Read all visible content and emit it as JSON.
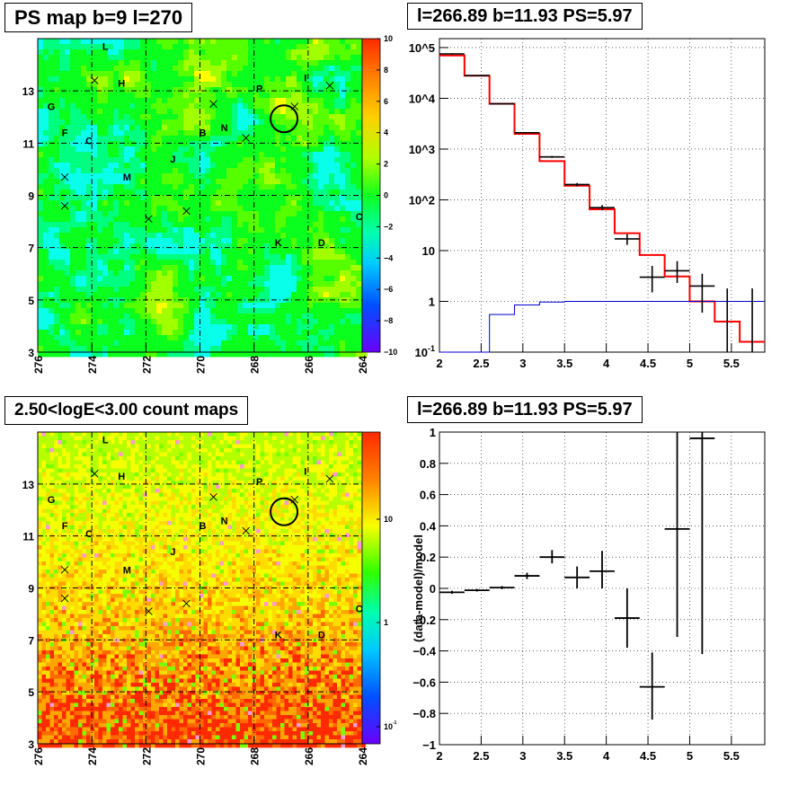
{
  "panels": {
    "tl": {
      "title": "PS map b=9 l=270"
    },
    "tr": {
      "title": "l=266.89 b=11.93 PS=5.97"
    },
    "bl": {
      "title": "2.50<logE<3.00 count maps"
    },
    "br": {
      "title": "l=266.89 b=11.93 PS=5.97"
    }
  },
  "chart_data": [
    {
      "type": "heatmap",
      "title": "PS map b=9 l=270",
      "xlim": [
        276,
        264
      ],
      "ylim": [
        3,
        15
      ],
      "x_ticks": [
        "276",
        "274",
        "272",
        "270",
        "268",
        "266",
        "264"
      ],
      "y_ticks": [
        "3",
        "5",
        "7",
        "9",
        "11",
        "13"
      ],
      "colorbar": {
        "range": [
          -10,
          10
        ],
        "ticks": [
          "10",
          "8",
          "6",
          "4",
          "2",
          "0",
          "−2",
          "−4",
          "−6",
          "−8",
          "−10"
        ]
      },
      "grid": true,
      "sources": [
        {
          "label": "L",
          "l": 273.5,
          "b": 14.7
        },
        {
          "label": "H",
          "l": 272.9,
          "b": 13.3
        },
        {
          "label": "G",
          "l": 275.5,
          "b": 12.4
        },
        {
          "label": "F",
          "l": 275.0,
          "b": 11.4
        },
        {
          "label": "C",
          "l": 274.1,
          "b": 11.1
        },
        {
          "label": "M",
          "l": 272.7,
          "b": 9.7
        },
        {
          "label": "J",
          "l": 271.0,
          "b": 10.4
        },
        {
          "label": "B",
          "l": 269.9,
          "b": 11.4
        },
        {
          "label": "N",
          "l": 269.1,
          "b": 11.6
        },
        {
          "label": "P",
          "l": 267.8,
          "b": 13.1
        },
        {
          "label": "I",
          "l": 266.1,
          "b": 13.5
        },
        {
          "label": "K",
          "l": 267.1,
          "b": 7.2
        },
        {
          "label": "D",
          "l": 265.5,
          "b": 7.2
        },
        {
          "label": "O",
          "l": 264.1,
          "b": 8.2
        }
      ],
      "markers": [
        {
          "l": 273.9,
          "b": 13.4
        },
        {
          "l": 275.0,
          "b": 9.7
        },
        {
          "l": 275.0,
          "b": 8.6
        },
        {
          "l": 271.9,
          "b": 8.1
        },
        {
          "l": 270.5,
          "b": 8.4
        },
        {
          "l": 269.5,
          "b": 12.5
        },
        {
          "l": 268.3,
          "b": 11.2
        },
        {
          "l": 266.5,
          "b": 12.4
        },
        {
          "l": 265.2,
          "b": 13.2
        }
      ],
      "circle": {
        "l": 266.89,
        "b": 11.93
      }
    },
    {
      "type": "line",
      "title": "l=266.89 b=11.93 PS=5.97",
      "xlim": [
        2,
        5.9
      ],
      "ylim_log": [
        0.1,
        150000
      ],
      "yscale": "log",
      "x_ticks": [
        "2",
        "2.5",
        "3",
        "3.5",
        "4",
        "4.5",
        "5",
        "5.5"
      ],
      "y_ticks": [
        "10^{-1}",
        "1",
        "10",
        "10^2",
        "10^3",
        "10^4",
        "10^5"
      ],
      "edges": [
        2.0,
        2.3,
        2.6,
        2.9,
        3.2,
        3.5,
        3.8,
        4.1,
        4.4,
        4.7,
        5.0,
        5.3,
        5.6,
        5.9
      ],
      "series": [
        {
          "color": "#ff0000",
          "values": [
            70000,
            28000,
            7800,
            2000,
            580,
            190,
            65,
            22,
            8.2,
            3.1,
            1.0,
            0.4,
            0.16
          ]
        },
        {
          "color": "#0000cc",
          "values": [
            0.1,
            0.1,
            0.55,
            0.85,
            0.97,
            1.0,
            1.0,
            1.0,
            1.0,
            1.0,
            1.0,
            1.0,
            1.0
          ]
        }
      ],
      "points": [
        {
          "x": 2.15,
          "y": 75000,
          "xe": 0.15,
          "lo": 73000,
          "hi": 77000
        },
        {
          "x": 2.45,
          "y": 28000,
          "xe": 0.15,
          "lo": 27500,
          "hi": 28500
        },
        {
          "x": 2.75,
          "y": 7800,
          "xe": 0.15,
          "lo": 7700,
          "hi": 7900
        },
        {
          "x": 3.05,
          "y": 2100,
          "xe": 0.15,
          "lo": 2050,
          "hi": 2150
        },
        {
          "x": 3.35,
          "y": 700,
          "xe": 0.15,
          "lo": 670,
          "hi": 730
        },
        {
          "x": 3.65,
          "y": 200,
          "xe": 0.15,
          "lo": 185,
          "hi": 215
        },
        {
          "x": 3.95,
          "y": 70,
          "xe": 0.15,
          "lo": 62,
          "hi": 79
        },
        {
          "x": 4.25,
          "y": 17,
          "xe": 0.15,
          "lo": 13,
          "hi": 21
        },
        {
          "x": 4.55,
          "y": 3,
          "xe": 0.15,
          "lo": 1.5,
          "hi": 5
        },
        {
          "x": 4.85,
          "y": 4,
          "xe": 0.15,
          "lo": 2.3,
          "hi": 6.2
        },
        {
          "x": 5.15,
          "y": 2,
          "xe": 0.15,
          "lo": 0.6,
          "hi": 3.5
        },
        {
          "x": 5.45,
          "y": 0.1,
          "xe": 0,
          "lo": 0.1,
          "hi": 1.8
        },
        {
          "x": 5.75,
          "y": 0.1,
          "xe": 0,
          "lo": 0.1,
          "hi": 1.8
        }
      ]
    },
    {
      "type": "heatmap",
      "title": "2.50<logE<3.00 count maps",
      "xlim": [
        276,
        264
      ],
      "ylim": [
        3,
        15
      ],
      "x_ticks": [
        "276",
        "274",
        "272",
        "270",
        "268",
        "266",
        "264"
      ],
      "y_ticks": [
        "3",
        "5",
        "7",
        "9",
        "11",
        "13"
      ],
      "colorbar": {
        "scale": "log",
        "range": [
          0.05,
          50
        ],
        "ticks": [
          "10",
          "1",
          "10^{-1}"
        ]
      },
      "grid": true
    },
    {
      "type": "scatter",
      "title": "l=266.89 b=11.93 PS=5.97",
      "xlim": [
        2,
        5.9
      ],
      "ylim": [
        -1,
        1
      ],
      "ylabel": "(data-model)/model",
      "x_ticks": [
        "2",
        "2.5",
        "3",
        "3.5",
        "4",
        "4.5",
        "5",
        "5.5"
      ],
      "y_ticks": [
        "−1",
        "−0.8",
        "−0.6",
        "−0.4",
        "−0.2",
        "0",
        "0.2",
        "0.4",
        "0.6",
        "0.8",
        "1"
      ],
      "points": [
        {
          "x": 2.15,
          "y": -0.025,
          "xe": 0.15,
          "lo": -0.035,
          "hi": -0.015
        },
        {
          "x": 2.45,
          "y": -0.012,
          "xe": 0.15,
          "lo": -0.02,
          "hi": -0.004
        },
        {
          "x": 2.75,
          "y": 0.005,
          "xe": 0.15,
          "lo": -0.005,
          "hi": 0.015
        },
        {
          "x": 3.05,
          "y": 0.08,
          "xe": 0.15,
          "lo": 0.06,
          "hi": 0.1
        },
        {
          "x": 3.35,
          "y": 0.2,
          "xe": 0.15,
          "lo": 0.16,
          "hi": 0.245
        },
        {
          "x": 3.65,
          "y": 0.07,
          "xe": 0.15,
          "lo": 0.0,
          "hi": 0.14
        },
        {
          "x": 3.95,
          "y": 0.11,
          "xe": 0.15,
          "lo": 0.0,
          "hi": 0.24
        },
        {
          "x": 4.25,
          "y": -0.19,
          "xe": 0.15,
          "lo": -0.38,
          "hi": 0.0
        },
        {
          "x": 4.55,
          "y": -0.63,
          "xe": 0.15,
          "lo": -0.84,
          "hi": -0.41
        },
        {
          "x": 4.85,
          "y": 0.38,
          "xe": 0.15,
          "lo": -0.31,
          "hi": 1.0
        },
        {
          "x": 5.15,
          "y": 0.96,
          "xe": 0.15,
          "lo": -0.42,
          "hi": 1.0
        }
      ]
    }
  ]
}
